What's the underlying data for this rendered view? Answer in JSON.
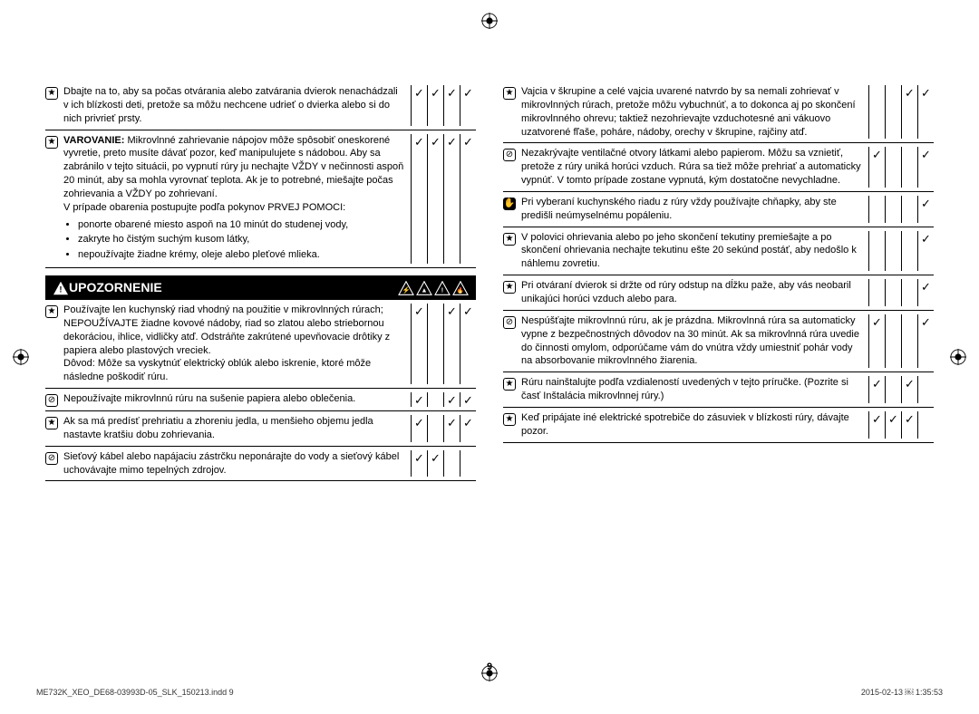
{
  "banner": {
    "label": "UPOZORNENIE"
  },
  "leftColumn": [
    {
      "icon": "star",
      "text": "Dbajte na to, aby sa počas otvárania alebo zatvárania dvierok nenachádzali v ich blízkosti deti, pretože sa môžu nechcene udrieť o dvierka alebo si do nich privrieť prsty.",
      "checks": [
        "✓",
        "✓",
        "✓",
        "✓"
      ]
    },
    {
      "icon": "star",
      "boldPrefix": "VAROVANIE:",
      "text": " Mikrovlnné zahrievanie nápojov môže spôsobiť oneskorené vyvretie, preto musíte dávať pozor, keď manipulujete s nádobou. Aby sa zabránilo v tejto situácii, po vypnutí rúry ju nechajte VŽDY v nečinnosti aspoň 20 minút, aby sa mohla vyrovnať teplota. Ak je to potrebné, miešajte počas zohrievania a VŽDY po zohrievaní.",
      "extra": "V prípade obarenia postupujte podľa pokynov PRVEJ POMOCI:",
      "bullets": [
        "ponorte obarené miesto aspoň na 10 minút do studenej vody,",
        "zakryte ho čistým suchým kusom látky,",
        "nepoužívajte žiadne krémy, oleje alebo pleťové mlieka."
      ],
      "checks": [
        "✓",
        "✓",
        "✓",
        "✓"
      ]
    }
  ],
  "leftColumnAfterBanner": [
    {
      "icon": "star",
      "text": "Používajte len kuchynský riad vhodný na použitie v mikrovlnných rúrach; NEPOUŽÍVAJTE žiadne kovové nádoby, riad so zlatou alebo striebornou dekoráciou, ihlice, vidličky atď. Odstráňte zakrútené upevňovacie drôtiky z papiera alebo plastových vreciek.\nDôvod: Môže sa vyskytnúť elektrický oblúk alebo iskrenie, ktoré môže následne poškodiť rúru.",
      "checks": [
        "✓",
        "",
        "✓",
        "✓"
      ]
    },
    {
      "icon": "prohibit",
      "text": "Nepoužívajte mikrovlnnú rúru na sušenie papiera alebo oblečenia.",
      "checks": [
        "✓",
        "",
        "✓",
        "✓"
      ]
    },
    {
      "icon": "star",
      "text": "Ak sa má predísť prehriatiu a zhoreniu jedla, u menšieho objemu jedla nastavte kratšiu dobu zohrievania.",
      "checks": [
        "✓",
        "",
        "✓",
        "✓"
      ]
    },
    {
      "icon": "prohibit",
      "text": "Sieťový kábel alebo napájaciu zástrčku neponárajte do vody a sieťový kábel uchovávajte mimo tepelných zdrojov.",
      "checks": [
        "✓",
        "✓",
        "",
        ""
      ]
    }
  ],
  "rightColumn": [
    {
      "icon": "star",
      "text": "Vajcia v škrupine a celé vajcia uvarené natvrdo by sa nemali zohrievať v mikrovlnných rúrach, pretože môžu vybuchnúť, a to dokonca aj po skončení mikrovlnného ohrevu; taktiež nezohrievajte vzduchotesné ani vákuovo uzatvorené fľaše, poháre, nádoby, orechy v škrupine, rajčiny atď.",
      "checks": [
        "",
        "",
        "✓",
        "✓"
      ]
    },
    {
      "icon": "prohibit",
      "text": "Nezakrývajte ventilačné otvory látkami alebo papierom. Môžu sa vznietiť, pretože z rúry uniká horúci vzduch. Rúra sa tiež môže prehriať a automaticky vypnúť. V tomto prípade zostane vypnutá, kým dostatočne nevychladne.",
      "checks": [
        "✓",
        "",
        "",
        "✓"
      ]
    },
    {
      "icon": "glove",
      "text": "Pri vyberaní kuchynského riadu z rúry vždy používajte chňapky, aby ste predišli neúmyselnému popáleniu.",
      "checks": [
        "",
        "",
        "",
        "✓"
      ]
    },
    {
      "icon": "star",
      "text": "V polovici ohrievania alebo po jeho skončení tekutiny premiešajte a po skončení ohrievania nechajte tekutinu ešte 20 sekúnd postáť, aby nedošlo k náhlemu zovretiu.",
      "checks": [
        "",
        "",
        "",
        "✓"
      ]
    },
    {
      "icon": "star",
      "text": "Pri otváraní dvierok si držte od rúry odstup na dĺžku paže, aby vás neobaril unikajúci horúci vzduch alebo para.",
      "checks": [
        "",
        "",
        "",
        "✓"
      ]
    },
    {
      "icon": "prohibit",
      "text": "Nespúšťajte mikrovlnnú rúru, ak je prázdna. Mikrovlnná rúra sa automaticky vypne z bezpečnostných dôvodov na 30 minút. Ak sa mikrovlnná rúra uvedie do činnosti omylom, odporúčame vám do vnútra vždy umiestniť pohár vody na absorbovanie mikrovlnného žiarenia.",
      "checks": [
        "✓",
        "",
        "",
        "✓"
      ]
    },
    {
      "icon": "star",
      "text": "Rúru nainštalujte podľa vzdialeností uvedených v tejto príručke. (Pozrite si časť Inštalácia mikrovlnnej rúry.)",
      "checks": [
        "✓",
        "",
        "✓",
        ""
      ]
    },
    {
      "icon": "star",
      "text": "Keď pripájate iné elektrické spotrebiče do zásuviek v blízkosti rúry, dávajte pozor.",
      "checks": [
        "✓",
        "✓",
        "✓",
        ""
      ]
    }
  ],
  "pageNumber": "9",
  "footerLeft": "ME732K_XEO_DE68-03993D-05_SLK_150213.indd   9",
  "footerRight": "2015-02-13   ￼ 1:35:53"
}
